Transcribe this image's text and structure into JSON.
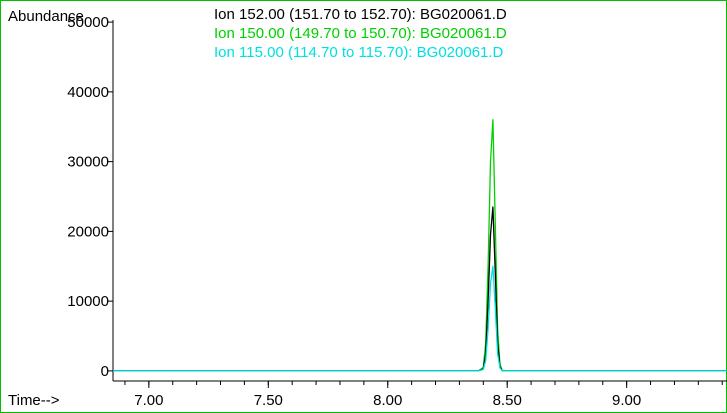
{
  "chart_data": {
    "type": "line",
    "ylabel": "Abundance",
    "xlabel": "Time-->",
    "xlim": [
      6.85,
      9.42
    ],
    "ylim": [
      -300,
      50300
    ],
    "xticks": [
      7.0,
      7.5,
      8.0,
      8.5,
      9.0
    ],
    "xtick_labels": [
      "7.00",
      "7.50",
      "8.00",
      "8.50",
      "9.00"
    ],
    "yticks": [
      0,
      10000,
      20000,
      30000,
      40000,
      50000
    ],
    "ytick_labels": [
      "0",
      "10000",
      "20000",
      "30000",
      "40000",
      "50000"
    ],
    "grid": false,
    "legend_position": "top",
    "series": [
      {
        "name": "Ion 152.00 (151.70 to 152.70): BG020061.D",
        "color": "#000000",
        "x": [
          6.85,
          8.38,
          8.4,
          8.41,
          8.42,
          8.43,
          8.44,
          8.45,
          8.46,
          8.47,
          8.48,
          9.42
        ],
        "values": [
          0,
          0,
          300,
          2500,
          10000,
          19500,
          23500,
          14000,
          4000,
          600,
          0,
          0
        ]
      },
      {
        "name": "Ion 150.00 (149.70 to 150.70): BG020061.D",
        "color": "#00d000",
        "x": [
          6.85,
          8.38,
          8.4,
          8.41,
          8.42,
          8.43,
          8.44,
          8.45,
          8.46,
          8.47,
          8.48,
          9.42
        ],
        "values": [
          0,
          0,
          500,
          4000,
          15000,
          30000,
          36000,
          21000,
          6000,
          900,
          0,
          0
        ]
      },
      {
        "name": "Ion 115.00 (114.70 to 115.70): BG020061.D",
        "color": "#00e0e0",
        "x": [
          6.85,
          8.38,
          8.4,
          8.41,
          8.42,
          8.43,
          8.44,
          8.45,
          8.46,
          8.47,
          8.48,
          9.42
        ],
        "values": [
          0,
          0,
          200,
          1500,
          6000,
          12500,
          15000,
          9000,
          2500,
          400,
          0,
          0
        ]
      }
    ]
  }
}
